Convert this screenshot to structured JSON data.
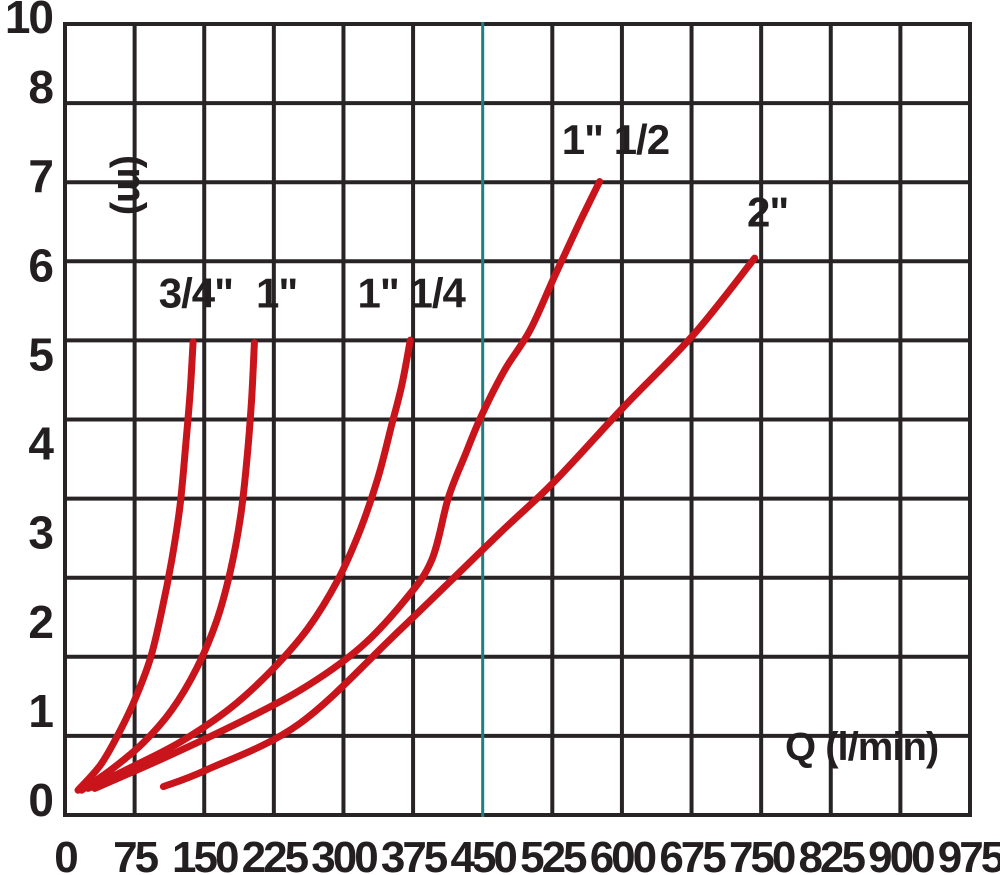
{
  "chart_data": {
    "type": "line",
    "title": "",
    "xlabel": "Q (l/min)",
    "ylabel": "(m)",
    "x_ticks": [
      0,
      75,
      150,
      225,
      300,
      375,
      450,
      525,
      600,
      675,
      750,
      825,
      900,
      975
    ],
    "y_ticks": [
      0,
      1,
      2,
      3,
      4,
      5,
      6,
      7,
      8,
      10
    ],
    "y_tick_note": "value 9 is not labeled; the 10 label sits at the top gridline",
    "xlim": [
      0,
      975
    ],
    "ylim": [
      0,
      10
    ],
    "grid": true,
    "legend_position": "curve labels inline above each curve tip",
    "highlight_gridline": {
      "axis": "x",
      "value": 450,
      "color": "#1e8080"
    },
    "colors": {
      "curve": "#c8141a",
      "grid": "#282325",
      "text": "#231f20",
      "background": "#ffffff",
      "highlight": "#1e8080"
    },
    "series": [
      {
        "id": "3-4in",
        "name": "3/4\"",
        "label_pos": {
          "q": 141,
          "h": 5.69
        },
        "points": [
          [
            14,
            0.11
          ],
          [
            38,
            0.39
          ],
          [
            57,
            0.73
          ],
          [
            75,
            1.12
          ],
          [
            92,
            1.59
          ],
          [
            104,
            2.11
          ],
          [
            115,
            2.69
          ],
          [
            124,
            3.31
          ],
          [
            130,
            3.98
          ],
          [
            135,
            4.6
          ],
          [
            138,
            5.14
          ]
        ]
      },
      {
        "id": "1in",
        "name": "1\"",
        "label_pos": {
          "q": 228,
          "h": 5.69
        },
        "points": [
          [
            18,
            0.11
          ],
          [
            51,
            0.35
          ],
          [
            84,
            0.64
          ],
          [
            115,
            1.01
          ],
          [
            142,
            1.48
          ],
          [
            163,
            2.0
          ],
          [
            178,
            2.56
          ],
          [
            189,
            3.17
          ],
          [
            196,
            3.82
          ],
          [
            201,
            4.49
          ],
          [
            204,
            5.13
          ]
        ]
      },
      {
        "id": "1-1-4in",
        "name": "1\" 1/4",
        "label_pos": {
          "q": 373,
          "h": 5.69
        },
        "points": [
          [
            25,
            0.13
          ],
          [
            70,
            0.36
          ],
          [
            124,
            0.65
          ],
          [
            178,
            1.03
          ],
          [
            223,
            1.46
          ],
          [
            262,
            1.93
          ],
          [
            294,
            2.47
          ],
          [
            318,
            3.03
          ],
          [
            337,
            3.61
          ],
          [
            352,
            4.21
          ],
          [
            363,
            4.66
          ],
          [
            372,
            5.16
          ]
        ]
      },
      {
        "id": "1-1-2in",
        "name": "1\" 1/2",
        "label_pos": {
          "q": 593,
          "h": 7.41
        },
        "points": [
          [
            32,
            0.13
          ],
          [
            102,
            0.45
          ],
          [
            178,
            0.82
          ],
          [
            253,
            1.23
          ],
          [
            318,
            1.71
          ],
          [
            366,
            2.24
          ],
          [
            395,
            2.69
          ],
          [
            413,
            3.39
          ],
          [
            431,
            3.87
          ],
          [
            449,
            4.32
          ],
          [
            474,
            4.83
          ],
          [
            501,
            5.27
          ],
          [
            528,
            5.89
          ],
          [
            553,
            6.45
          ],
          [
            576,
            6.94
          ]
        ]
      },
      {
        "id": "2in",
        "name": "2\"",
        "label_pos": {
          "q": 757,
          "h": 6.6
        },
        "points": [
          [
            106,
            0.15
          ],
          [
            153,
            0.34
          ],
          [
            253,
            0.86
          ],
          [
            361,
            1.91
          ],
          [
            469,
            3.0
          ],
          [
            526,
            3.56
          ],
          [
            601,
            4.4
          ],
          [
            677,
            5.22
          ],
          [
            743,
            6.08
          ]
        ]
      }
    ]
  }
}
